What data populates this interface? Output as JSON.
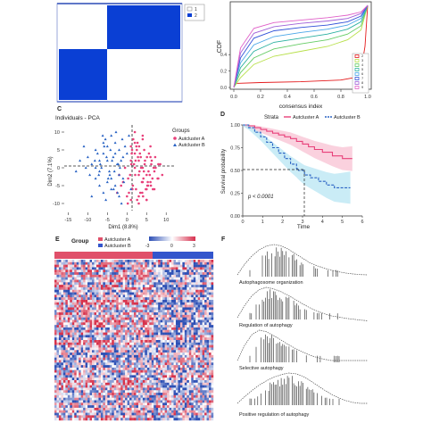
{
  "panels": {
    "A": {
      "letter": "",
      "legend": [
        "1",
        "2"
      ]
    },
    "B": {
      "letter": "",
      "ylabel": "CDF",
      "xlabel": "consensus index",
      "yticks": [
        "0.4",
        "0.2",
        "0.0"
      ],
      "xticks": [
        "0.0",
        "0.2",
        "0.4",
        "0.6",
        "0.8",
        "1.0"
      ],
      "legend": [
        "2",
        "3",
        "4",
        "5",
        "6",
        "7",
        "8",
        "9"
      ]
    },
    "C": {
      "letter": "C",
      "title": "Individuals - PCA",
      "xlabel": "Dim1 (8.8%)",
      "ylabel": "Dim2 (7.1%)",
      "xticks": [
        "-15",
        "-10",
        "-5",
        "0",
        "5",
        "10"
      ],
      "yticks": [
        "10",
        "5",
        "0",
        "-5",
        "-10"
      ],
      "legend_title": "Groups",
      "legend": [
        "Autcluster A",
        "Autcluster B"
      ]
    },
    "D": {
      "letter": "D",
      "strata_label": "Strata",
      "legend": [
        "Autcluster A",
        "Autcluster B"
      ],
      "ylabel": "Survival probability",
      "xlabel": "Time",
      "yticks": [
        "1.00",
        "0.75",
        "0.50",
        "0.25",
        "0.00"
      ],
      "xticks": [
        "0",
        "1",
        "2",
        "3",
        "4",
        "5",
        "6"
      ],
      "pvalue": "p < 0.0001",
      "median_mark": "2.8"
    },
    "E": {
      "letter": "E",
      "group_label": "Group",
      "legend": [
        "Autcluster A",
        "Autcluster B"
      ],
      "scale_ticks": [
        "-3",
        "0",
        "3"
      ]
    },
    "F": {
      "letter": "F",
      "gsea": [
        "Autophagosome organization",
        "Regulation of autophagy",
        "Selective autophagy",
        "Positive regulation of autophagy"
      ]
    }
  },
  "colors": {
    "cluster_a": "#e8407a",
    "cluster_b": "#2a63c4",
    "consensus_blue": "#0a3fd4",
    "heat_red": "#d7304e",
    "heat_blue": "#2d4fb5"
  },
  "chart_data": [
    {
      "type": "heatmap",
      "panel": "A",
      "rows": 2,
      "cols": 2,
      "values": [
        [
          0,
          1
        ],
        [
          1,
          0
        ]
      ],
      "legend": [
        "1",
        "2"
      ]
    },
    {
      "type": "line",
      "panel": "B",
      "xlabel": "consensus index",
      "ylabel": "CDF",
      "xlim": [
        0,
        1
      ],
      "series": [
        {
          "name": "2",
          "color": "#e41a1c",
          "x": [
            0,
            0.02,
            0.2,
            0.5,
            0.8,
            0.9,
            0.95,
            0.98,
            1.0
          ],
          "y": [
            0.02,
            0.05,
            0.06,
            0.07,
            0.09,
            0.12,
            0.2,
            0.5,
            1.0
          ]
        },
        {
          "name": "3",
          "color": "#b8e04a",
          "x": [
            0,
            0.05,
            0.15,
            0.3,
            0.5,
            0.7,
            0.85,
            0.95,
            1.0
          ],
          "y": [
            0.0,
            0.12,
            0.28,
            0.38,
            0.44,
            0.5,
            0.58,
            0.7,
            1.0
          ]
        },
        {
          "name": "4",
          "color": "#66cc66",
          "x": [
            0,
            0.05,
            0.15,
            0.3,
            0.5,
            0.7,
            0.85,
            0.95,
            1.0
          ],
          "y": [
            0.0,
            0.18,
            0.36,
            0.47,
            0.53,
            0.58,
            0.65,
            0.75,
            1.0
          ]
        },
        {
          "name": "5",
          "color": "#2ab0a0",
          "x": [
            0,
            0.05,
            0.15,
            0.3,
            0.5,
            0.7,
            0.85,
            0.95,
            1.0
          ],
          "y": [
            0.0,
            0.24,
            0.44,
            0.55,
            0.6,
            0.65,
            0.71,
            0.8,
            1.0
          ]
        },
        {
          "name": "6",
          "color": "#4aa6e8",
          "x": [
            0,
            0.05,
            0.15,
            0.3,
            0.5,
            0.7,
            0.85,
            0.95,
            1.0
          ],
          "y": [
            0.0,
            0.3,
            0.52,
            0.62,
            0.67,
            0.71,
            0.76,
            0.84,
            1.0
          ]
        },
        {
          "name": "7",
          "color": "#3050d8",
          "x": [
            0,
            0.05,
            0.15,
            0.3,
            0.5,
            0.7,
            0.85,
            0.95,
            1.0
          ],
          "y": [
            0.0,
            0.36,
            0.6,
            0.69,
            0.73,
            0.76,
            0.8,
            0.87,
            1.0
          ]
        },
        {
          "name": "8",
          "color": "#a060d8",
          "x": [
            0,
            0.05,
            0.15,
            0.3,
            0.5,
            0.7,
            0.85,
            0.95,
            1.0
          ],
          "y": [
            0.0,
            0.42,
            0.66,
            0.74,
            0.78,
            0.81,
            0.84,
            0.9,
            1.0
          ]
        },
        {
          "name": "9",
          "color": "#e060c8",
          "x": [
            0,
            0.05,
            0.15,
            0.3,
            0.5,
            0.7,
            0.85,
            0.95,
            1.0
          ],
          "y": [
            0.0,
            0.48,
            0.72,
            0.79,
            0.82,
            0.85,
            0.88,
            0.92,
            1.0
          ]
        }
      ]
    },
    {
      "type": "scatter",
      "panel": "C",
      "title": "Individuals - PCA",
      "xlabel": "Dim1 (8.8%)",
      "ylabel": "Dim2 (7.1%)",
      "xlim": [
        -16,
        12
      ],
      "ylim": [
        -12,
        12
      ],
      "series": [
        {
          "name": "Autcluster A",
          "marker": "circle",
          "color": "#e8407a",
          "x": [
            1,
            2,
            3,
            4,
            5,
            6,
            7,
            8,
            2.5,
            3.5,
            4.5,
            5.5,
            6.5,
            1.5,
            0.5,
            2,
            3,
            4,
            5,
            6,
            1,
            2,
            3,
            4,
            5,
            7,
            8,
            9,
            1.2,
            2.2,
            3.2,
            4.2,
            5.2,
            6.2,
            7.2,
            0.8,
            1.8,
            2.8,
            3.8,
            4.8,
            5.8,
            6.8,
            2.4,
            3.4,
            4.4,
            5.4,
            1.6,
            2.6,
            3.6,
            4.6,
            0.3,
            1.3,
            2.3,
            3.3,
            4.3,
            5.3,
            6.3,
            7.3,
            1.1,
            2.1,
            3.1,
            4.1,
            5.1,
            6.1,
            -0.5,
            -1,
            -2,
            0.2,
            1.4,
            2.7,
            3.9,
            5.6,
            6.6,
            7.8,
            8.5,
            4,
            3,
            2,
            1,
            0,
            -1.5,
            -2.5,
            5,
            6
          ],
          "y": [
            6,
            4,
            2,
            0,
            -2,
            -4,
            -6,
            -3,
            5,
            3,
            1,
            -1,
            -3,
            -5,
            -7,
            7,
            -8,
            8,
            -9,
            3,
            2,
            0,
            -2,
            -4,
            -6,
            -1,
            1,
            -2,
            4,
            2,
            -1,
            -3,
            -5,
            1,
            3,
            -2,
            1,
            3,
            -4,
            -6,
            -2,
            0,
            6,
            -7,
            5,
            -5,
            8,
            -9,
            0,
            2,
            -3,
            5,
            -6,
            4,
            -1,
            -4,
            2,
            0,
            1,
            -2,
            6,
            -8,
            3,
            -5,
            0,
            -4,
            -2,
            -10,
            -6,
            7,
            -7,
            4,
            -6,
            -3,
            1,
            9,
            -10,
            10,
            -9,
            -8,
            -5,
            -7,
            -9,
            6
          ]
        },
        {
          "name": "Autcluster B",
          "marker": "triangle",
          "color": "#2a63c4",
          "x": [
            -1,
            -2,
            -3,
            -4,
            -5,
            -6,
            -7,
            -8,
            -9,
            -10,
            -11,
            -2.5,
            -3.5,
            -4.5,
            -5.5,
            -6.5,
            -7.5,
            -1.5,
            -0.5,
            -2,
            -3,
            -4,
            -5,
            -6,
            -7,
            -8,
            -1.2,
            -2.2,
            -3.2,
            -4.2,
            -5.2,
            -6.2,
            -7.2,
            -8.2,
            -0.8,
            -1.8,
            -2.8,
            -3.8,
            -4.8,
            -5.8,
            -6.8,
            -9.5,
            -10.5,
            -12,
            -13,
            -3,
            -4,
            -5,
            -6,
            -2,
            -1,
            0,
            0.5,
            1,
            -7,
            -8,
            -9,
            -4.4,
            -5.4,
            -3.4,
            -2.4,
            -1.4
          ],
          "y": [
            3,
            5,
            7,
            9,
            6,
            4,
            2,
            5,
            1,
            3,
            6,
            1,
            3,
            -1,
            8,
            0,
            4,
            2,
            6,
            -2,
            4,
            -3,
            2,
            7,
            -1,
            0,
            8,
            1,
            -1,
            5,
            3,
            9,
            -2,
            2,
            -4,
            0,
            10,
            2,
            -3,
            6,
            1,
            -2,
            0,
            2,
            -1,
            -5,
            -6,
            -4,
            -7,
            -8,
            -3,
            4,
            9,
            -6,
            -5,
            -3,
            -8,
            -2,
            -9,
            -6,
            -7,
            -10
          ]
        }
      ]
    },
    {
      "type": "line",
      "panel": "D",
      "xlabel": "Time",
      "ylabel": "Survival probability",
      "xlim": [
        0,
        6
      ],
      "ylim": [
        0,
        1
      ],
      "series": [
        {
          "name": "Autcluster A",
          "color": "#e8407a",
          "x": [
            0,
            0.3,
            0.6,
            0.9,
            1.2,
            1.5,
            1.8,
            2.1,
            2.4,
            2.7,
            3.0,
            3.3,
            3.6,
            4.0,
            4.5,
            5.0,
            5.5
          ],
          "y": [
            1.0,
            0.99,
            0.97,
            0.95,
            0.93,
            0.91,
            0.89,
            0.87,
            0.85,
            0.82,
            0.79,
            0.76,
            0.73,
            0.7,
            0.66,
            0.63,
            0.63
          ]
        },
        {
          "name": "Autcluster B",
          "color": "#2a63c4",
          "x": [
            0,
            0.3,
            0.6,
            0.9,
            1.2,
            1.5,
            1.8,
            2.1,
            2.4,
            2.7,
            2.8,
            3.1,
            3.4,
            3.8,
            4.2,
            4.6,
            5.0,
            5.4
          ],
          "y": [
            1.0,
            0.97,
            0.92,
            0.87,
            0.81,
            0.75,
            0.69,
            0.63,
            0.57,
            0.52,
            0.5,
            0.45,
            0.42,
            0.38,
            0.34,
            0.31,
            0.31,
            0.31
          ]
        }
      ],
      "annotation": "p < 0.0001"
    },
    {
      "type": "heatmap",
      "panel": "E",
      "groups": [
        "Autcluster A",
        "Autcluster B"
      ],
      "group_split": 0.62,
      "scale": [
        -3,
        3
      ]
    },
    {
      "type": "line",
      "panel": "F",
      "subplots": [
        {
          "title": "Autophagosome organization",
          "curve": [
            0.0,
            0.35,
            0.62,
            0.82,
            0.95,
            1.0,
            0.96,
            0.85,
            0.7,
            0.55,
            0.4,
            0.3,
            0.22,
            0.15,
            0.1,
            0.06,
            0.03,
            0.01,
            0.0
          ]
        },
        {
          "title": "Regulation of autophagy",
          "curve": [
            0.0,
            0.4,
            0.72,
            0.92,
            1.0,
            0.95,
            0.86,
            0.74,
            0.6,
            0.46,
            0.33,
            0.22,
            0.13,
            0.06,
            0.02,
            -0.02,
            -0.05,
            -0.08,
            -0.1
          ]
        },
        {
          "title": "Selective autophagy",
          "curve": [
            0.0,
            0.5,
            0.85,
            1.0,
            0.95,
            0.82,
            0.68,
            0.53,
            0.4,
            0.28,
            0.18,
            0.1,
            0.04,
            0.0,
            0.0,
            0.0,
            0.0,
            0.0,
            0.0
          ]
        },
        {
          "title": "Positive regulation of autophagy",
          "curve": [
            0.0,
            0.22,
            0.42,
            0.6,
            0.74,
            0.86,
            0.94,
            1.0,
            0.98,
            0.9,
            0.76,
            0.6,
            0.44,
            0.3,
            0.18,
            0.09,
            0.03,
            0.0,
            0.0
          ]
        }
      ]
    }
  ]
}
